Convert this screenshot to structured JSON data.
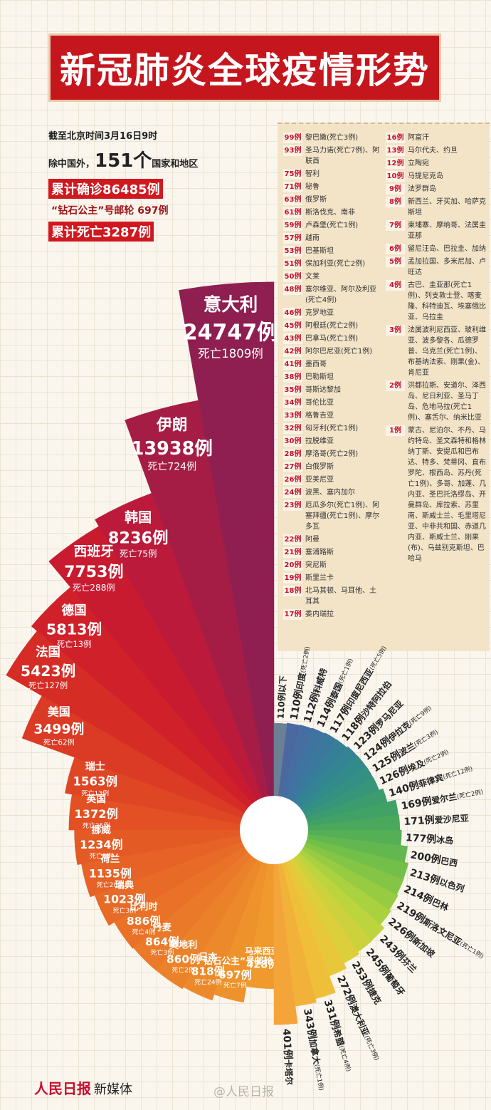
{
  "header": {
    "title": "新冠肺炎全球疫情形势"
  },
  "summary": {
    "as_of": "截至北京时间3月16日9时",
    "countries_prefix": "除中国外，",
    "countries_count": "151个",
    "countries_suffix": "国家和地区",
    "confirmed": "累计确诊86485例",
    "cruise": "“钻石公主”号邮轮 697例",
    "deaths": "累计死亡3287例"
  },
  "list": {
    "columns": [
      [
        {
          "count": "99例",
          "text": "黎巴嫩(死亡3例)"
        },
        {
          "count": "93例",
          "text": "圣马力诺(死亡7例)、阿联酋"
        },
        {
          "count": "75例",
          "text": "智利"
        },
        {
          "count": "71例",
          "text": "秘鲁"
        },
        {
          "count": "63例",
          "text": "俄罗斯"
        },
        {
          "count": "61例",
          "text": "斯洛伐克、南非"
        },
        {
          "count": "59例",
          "text": "卢森堡(死亡1例)"
        },
        {
          "count": "57例",
          "text": "越南"
        },
        {
          "count": "53例",
          "text": "巴基斯坦"
        },
        {
          "count": "51例",
          "text": "保加利亚(死亡2例)"
        },
        {
          "count": "50例",
          "text": "文莱"
        },
        {
          "count": "48例",
          "text": "塞尔维亚、阿尔及利亚(死亡4例)"
        },
        {
          "count": "46例",
          "text": "克罗地亚"
        },
        {
          "count": "45例",
          "text": "阿根廷(死亡2例)"
        },
        {
          "count": "43例",
          "text": "巴拿马(死亡1例)"
        },
        {
          "count": "42例",
          "text": "阿尔巴尼亚(死亡1例)"
        },
        {
          "count": "41例",
          "text": "墨西哥"
        },
        {
          "count": "38例",
          "text": "巴勒斯坦"
        },
        {
          "count": "35例",
          "text": "哥斯达黎加"
        },
        {
          "count": "34例",
          "text": "哥伦比亚"
        },
        {
          "count": "33例",
          "text": "格鲁吉亚"
        },
        {
          "count": "32例",
          "text": "匈牙利(死亡1例)"
        },
        {
          "count": "30例",
          "text": "拉脱维亚"
        },
        {
          "count": "28例",
          "text": "摩洛哥(死亡2例)"
        },
        {
          "count": "27例",
          "text": "白俄罗斯"
        },
        {
          "count": "26例",
          "text": "亚美尼亚"
        },
        {
          "count": "24例",
          "text": "波黑、塞内加尔"
        },
        {
          "count": "23例",
          "text": "厄瓜多尔(死亡1例)、阿塞拜疆(死亡1例)、摩尔多瓦"
        },
        {
          "count": "22例",
          "text": "阿曼"
        },
        {
          "count": "21例",
          "text": "塞浦路斯"
        },
        {
          "count": "20例",
          "text": "突尼斯"
        },
        {
          "count": "19例",
          "text": "斯里兰卡"
        },
        {
          "count": "18例",
          "text": "北马其顿、马耳他、土耳其"
        },
        {
          "count": "17例",
          "text": "委内瑞拉"
        }
      ],
      [
        {
          "count": "16例",
          "text": "阿富汗"
        },
        {
          "count": "13例",
          "text": "马尔代夫、约旦"
        },
        {
          "count": "12例",
          "text": "立陶宛"
        },
        {
          "count": "10例",
          "text": "马提尼克岛"
        },
        {
          "count": "9例",
          "text": "法罗群岛"
        },
        {
          "count": "8例",
          "text": "新西兰、牙买加、哈萨克斯坦"
        },
        {
          "count": "7例",
          "text": "柬埔寨、摩纳哥、法属圭亚那"
        },
        {
          "count": "6例",
          "text": "留尼汪岛、巴拉圭、加纳"
        },
        {
          "count": "5例",
          "text": "孟加拉国、多米尼加、卢旺达"
        },
        {
          "count": "4例",
          "text": "古巴、圭亚那(死亡1例)、列支敦士登、喀麦隆、科特迪瓦、埃塞俄比亚、乌拉圭"
        },
        {
          "count": "3例",
          "text": "法属波利尼西亚、玻利维亚、波多黎各、瓜德罗普、乌克兰(死亡1例)、布基纳法索、刚果(金)、肯尼亚"
        },
        {
          "count": "2例",
          "text": "洪都拉斯、安道尔、泽西岛、尼日利亚、圣马丁岛、危地马拉(死亡1例)、塞舌尔、纳米比亚"
        },
        {
          "count": "1例",
          "text": "蒙古、尼泊尔、不丹、马约特岛、圣文森特和格林纳丁斯、安提瓜和巴布达、特多、梵蒂冈、直布罗陀、根西岛、苏丹(死亡1例)、多哥、加蓬、几内亚、圣巴托洛缪岛、开曼群岛、库拉索、苏里南、斯威士兰、毛里塔尼亚、中非共和国、赤道几内亚、斯威士兰、刚果(布)、乌兹别克斯坦、巴哈马"
        }
      ]
    ]
  },
  "chart_data": [
    {
      "type": "rose",
      "categories": [
        "意大利",
        "伊朗",
        "韩国",
        "西班牙",
        "德国",
        "法国",
        "美国",
        "瑞士",
        "英国",
        "挪威",
        "荷兰",
        "瑞典",
        "比利时",
        "丹麦",
        "奥地利",
        "日本",
        "“钻石公主”号邮轮",
        "马来西亚"
      ],
      "values": [
        24747,
        13938,
        8236,
        7753,
        5813,
        5423,
        3499,
        1563,
        1372,
        1234,
        1135,
        1023,
        886,
        864,
        860,
        818,
        697,
        428
      ],
      "value_labels": [
        "24747例",
        "13938例",
        "8236例",
        "7753例",
        "5813例",
        "5423例",
        "3499例",
        "1563例",
        "1372例",
        "1234例",
        "1135例",
        "1023例",
        "886例",
        "864例",
        "860例",
        "818例",
        "697例",
        "428例"
      ],
      "death_labels": [
        "死亡1809例",
        "死亡724例",
        "死亡75例",
        "死亡288例",
        "死亡13例",
        "死亡127例",
        "死亡62例",
        "死亡13例",
        "死亡35例",
        "死亡3例",
        "死亡20例",
        "死亡3例",
        "死亡4例",
        "死亡3例",
        "死亡2例",
        "死亡24例",
        "死亡7例",
        null
      ],
      "colors": [
        "#8f1f50",
        "#a51d45",
        "#bb1a3a",
        "#c81b30",
        "#d0202a",
        "#d62c26",
        "#db3a24",
        "#df4624",
        "#e25024",
        "#e45a25",
        "#e66226",
        "#e86a27",
        "#e97228",
        "#ea7a29",
        "#eb822a",
        "#ec8a2b",
        "#ee922c",
        "#f09a2e"
      ]
    },
    {
      "type": "rose",
      "categories": [
        "卡塔尔",
        "加拿大",
        "希腊",
        "澳大利亚",
        "捷克",
        "葡萄牙",
        "芬兰",
        "新加坡",
        "斯洛文尼亚",
        "巴林",
        "以色列",
        "巴西",
        "冰岛",
        "爱沙尼亚",
        "爱尔兰",
        "菲律宾",
        "埃及",
        "波兰",
        "伊拉克",
        "罗马尼亚",
        "沙特阿拉伯",
        "印度尼西亚",
        "泰国",
        "科威特",
        "印度",
        "110例以下"
      ],
      "values": [
        401,
        343,
        331,
        272,
        253,
        245,
        243,
        226,
        219,
        214,
        213,
        200,
        177,
        171,
        169,
        140,
        126,
        125,
        124,
        123,
        118,
        117,
        114,
        112,
        110,
        null
      ],
      "value_labels": [
        "401例",
        "343例",
        "331例",
        "272例",
        "253例",
        "245例",
        "243例",
        "226例",
        "219例",
        "214例",
        "213例",
        "200例",
        "177例",
        "171例",
        "169例",
        "140例",
        "126例",
        "125例",
        "124例",
        "123例",
        "118例",
        "117例",
        "114例",
        "112例",
        "110例",
        null
      ],
      "death_labels": [
        null,
        "(死亡1例)",
        "(死亡4例)",
        "(死亡3例)",
        null,
        null,
        null,
        null,
        "(死亡1例)",
        null,
        null,
        null,
        null,
        null,
        "(死亡2例)",
        "(死亡12例)",
        "(死亡2例)",
        "(死亡3例)",
        "(死亡9例)",
        null,
        null,
        "(死亡5例)",
        "(死亡1例)",
        null,
        "(死亡2例)",
        null
      ],
      "colors": [
        "#f3a53a",
        "#f2b23a",
        "#efbf3a",
        "#e8c83a",
        "#dccf3b",
        "#cdd23c",
        "#bcd43e",
        "#a9d140",
        "#96cb42",
        "#84c545",
        "#72bf4a",
        "#62b84f",
        "#55b055",
        "#4aa85c",
        "#42a265",
        "#3c9c6e",
        "#379679",
        "#349082",
        "#338a8b",
        "#348593",
        "#367f99",
        "#3a799d",
        "#3f73a0",
        "#456ea1",
        "#4b69a0",
        "#6b7f95"
      ]
    }
  ],
  "footer": {
    "logo": "人民日报",
    "brand": "新媒体",
    "watermark": "@人民日报"
  }
}
